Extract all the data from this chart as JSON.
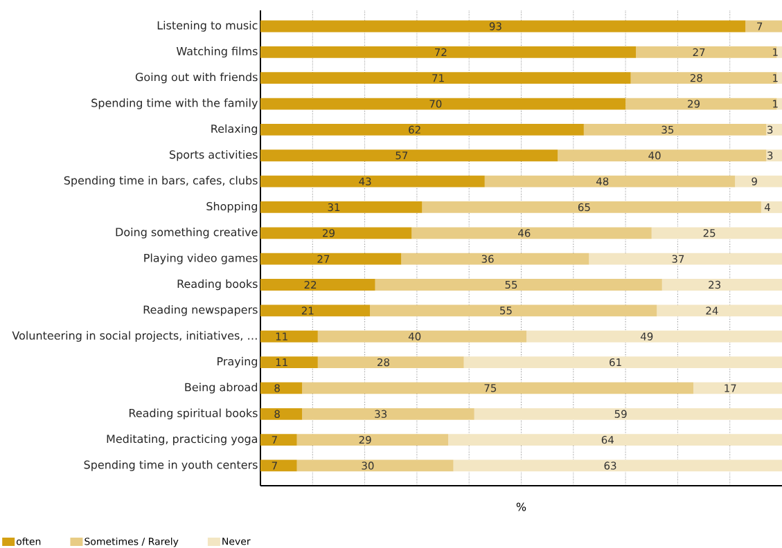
{
  "chart_data": {
    "type": "bar",
    "orientation": "horizontal",
    "stacked": true,
    "xlabel": "%",
    "categories": [
      "Listening to music",
      "Watching films",
      "Going out with friends",
      "Spending time with the family",
      "Relaxing",
      "Sports activities",
      "Spending time in bars, cafes, clubs",
      "Shopping",
      "Doing something creative",
      "Playing video games",
      "Reading books",
      "Reading newspapers",
      "Volunteering in social projects, initiatives, …",
      "Praying",
      "Being abroad",
      "Reading spiritual books",
      "Meditating, practicing yoga",
      "Spending time in youth centers"
    ],
    "series": [
      {
        "name": "often",
        "color": "#d4a012",
        "values": [
          93,
          72,
          71,
          70,
          62,
          57,
          43,
          31,
          29,
          27,
          22,
          21,
          11,
          11,
          8,
          8,
          7,
          7
        ]
      },
      {
        "name": "Sometimes / Rarely",
        "color": "#e8cc85",
        "values": [
          7,
          27,
          28,
          29,
          35,
          40,
          48,
          65,
          46,
          36,
          55,
          55,
          40,
          28,
          75,
          33,
          29,
          30
        ]
      },
      {
        "name": "Never",
        "color": "#f3e6c3",
        "values": [
          null,
          1,
          1,
          1,
          3,
          3,
          9,
          4,
          25,
          37,
          23,
          24,
          49,
          61,
          17,
          59,
          64,
          63
        ]
      }
    ],
    "xlim": [
      0,
      100
    ],
    "xticks": [
      {
        "value": 10,
        "label": null
      },
      {
        "value": 20,
        "label": null
      },
      {
        "value": 30,
        "label": null
      },
      {
        "value": 40,
        "label": null
      },
      {
        "value": 50,
        "label": null
      },
      {
        "value": 60,
        "label": null
      },
      {
        "value": 70,
        "label": null
      },
      {
        "value": 80,
        "label": null
      },
      {
        "value": 90,
        "label": null
      }
    ],
    "tick_labels": "y",
    "grid": "x",
    "data_labels": true,
    "legend": "bottom"
  }
}
